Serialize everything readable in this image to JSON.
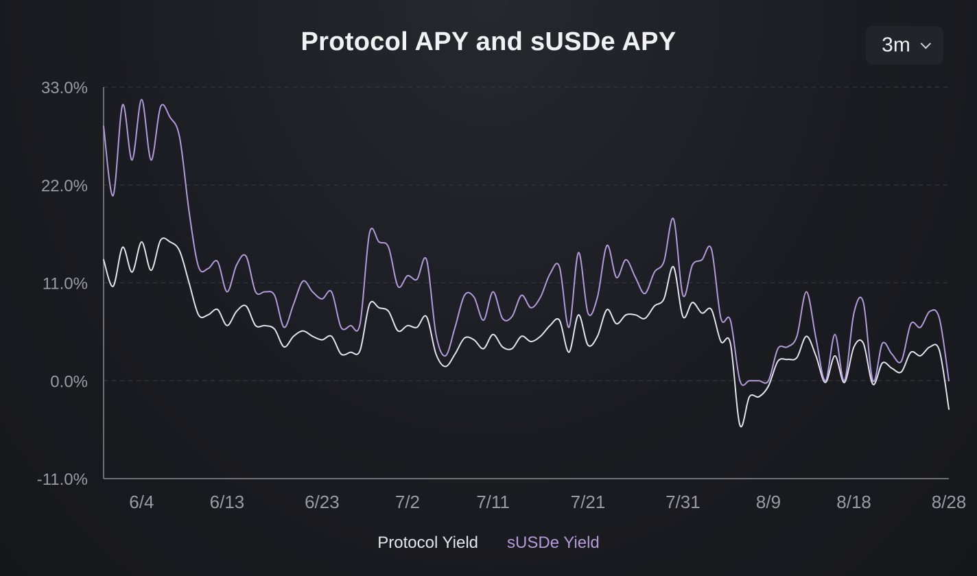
{
  "header": {
    "range_value": "3m",
    "range_icon": "chevron-down-icon"
  },
  "colors": {
    "protocol": "#e3e6f0",
    "susde": "#b49bdc",
    "axis": "#8a8c92",
    "grid": "#34363c",
    "text": "#9b9ca2"
  },
  "chart_data": {
    "type": "line",
    "title": "Protocol APY and sUSDe APY",
    "xlabel": "",
    "ylabel": "",
    "ylim": [
      -11,
      33
    ],
    "yticks": [
      33,
      22,
      11,
      0,
      -11
    ],
    "ytick_labels": [
      "33.0%",
      "22.0%",
      "11.0%",
      "0.0%",
      "-11.0%"
    ],
    "x_dates": [
      "2024-05-31",
      "2024-08-28"
    ],
    "xticks": [
      "2024-06-04",
      "2024-06-13",
      "2024-06-23",
      "2024-07-02",
      "2024-07-11",
      "2024-07-21",
      "2024-07-31",
      "2024-08-09",
      "2024-08-18",
      "2024-08-28"
    ],
    "xtick_labels": [
      "6/4",
      "6/13",
      "6/23",
      "7/2",
      "7/11",
      "7/21",
      "7/31",
      "8/9",
      "8/18",
      "8/28"
    ],
    "grid": "horizontal dashed",
    "legend_position": "bottom-center",
    "series": [
      {
        "name": "Protocol Yield",
        "color": "#e3e6f0",
        "points": [
          [
            "2024-05-31",
            13.6
          ],
          [
            "2024-06-01",
            10.6
          ],
          [
            "2024-06-02",
            15.0
          ],
          [
            "2024-06-03",
            12.2
          ],
          [
            "2024-06-04",
            15.6
          ],
          [
            "2024-06-05",
            12.4
          ],
          [
            "2024-06-06",
            15.8
          ],
          [
            "2024-06-07",
            15.6
          ],
          [
            "2024-06-08",
            14.6
          ],
          [
            "2024-06-09",
            11.0
          ],
          [
            "2024-06-10",
            7.4
          ],
          [
            "2024-06-11",
            7.4
          ],
          [
            "2024-06-12",
            8.0
          ],
          [
            "2024-06-13",
            6.2
          ],
          [
            "2024-06-14",
            7.8
          ],
          [
            "2024-06-15",
            8.4
          ],
          [
            "2024-06-16",
            6.2
          ],
          [
            "2024-06-17",
            6.2
          ],
          [
            "2024-06-18",
            5.8
          ],
          [
            "2024-06-19",
            3.8
          ],
          [
            "2024-06-20",
            5.0
          ],
          [
            "2024-06-21",
            5.6
          ],
          [
            "2024-06-22",
            5.0
          ],
          [
            "2024-06-23",
            4.6
          ],
          [
            "2024-06-24",
            5.0
          ],
          [
            "2024-06-25",
            3.0
          ],
          [
            "2024-06-26",
            3.2
          ],
          [
            "2024-06-27",
            3.4
          ],
          [
            "2024-06-28",
            8.6
          ],
          [
            "2024-06-29",
            8.2
          ],
          [
            "2024-06-30",
            7.8
          ],
          [
            "2024-07-01",
            5.6
          ],
          [
            "2024-07-02",
            6.2
          ],
          [
            "2024-07-03",
            6.0
          ],
          [
            "2024-07-04",
            7.2
          ],
          [
            "2024-07-05",
            3.0
          ],
          [
            "2024-07-06",
            1.6
          ],
          [
            "2024-07-07",
            3.0
          ],
          [
            "2024-07-08",
            4.8
          ],
          [
            "2024-07-09",
            4.6
          ],
          [
            "2024-07-10",
            3.6
          ],
          [
            "2024-07-11",
            5.2
          ],
          [
            "2024-07-12",
            3.8
          ],
          [
            "2024-07-13",
            3.6
          ],
          [
            "2024-07-14",
            5.0
          ],
          [
            "2024-07-15",
            4.4
          ],
          [
            "2024-07-16",
            5.0
          ],
          [
            "2024-07-17",
            6.2
          ],
          [
            "2024-07-18",
            6.8
          ],
          [
            "2024-07-19",
            3.2
          ],
          [
            "2024-07-20",
            7.4
          ],
          [
            "2024-07-21",
            4.0
          ],
          [
            "2024-07-22",
            5.0
          ],
          [
            "2024-07-23",
            8.0
          ],
          [
            "2024-07-24",
            6.4
          ],
          [
            "2024-07-25",
            7.4
          ],
          [
            "2024-07-26",
            7.4
          ],
          [
            "2024-07-27",
            7.0
          ],
          [
            "2024-07-28",
            8.4
          ],
          [
            "2024-07-29",
            9.2
          ],
          [
            "2024-07-30",
            12.8
          ],
          [
            "2024-07-31",
            7.2
          ],
          [
            "2024-08-01",
            8.8
          ],
          [
            "2024-08-02",
            7.6
          ],
          [
            "2024-08-03",
            8.0
          ],
          [
            "2024-08-04",
            4.4
          ],
          [
            "2024-08-05",
            4.2
          ],
          [
            "2024-08-06",
            -5.0
          ],
          [
            "2024-08-07",
            -1.8
          ],
          [
            "2024-08-08",
            -1.8
          ],
          [
            "2024-08-09",
            -0.6
          ],
          [
            "2024-08-10",
            2.2
          ],
          [
            "2024-08-11",
            2.4
          ],
          [
            "2024-08-12",
            2.6
          ],
          [
            "2024-08-13",
            5.0
          ],
          [
            "2024-08-14",
            2.8
          ],
          [
            "2024-08-15",
            -0.2
          ],
          [
            "2024-08-16",
            2.8
          ],
          [
            "2024-08-17",
            -0.2
          ],
          [
            "2024-08-18",
            3.8
          ],
          [
            "2024-08-19",
            4.2
          ],
          [
            "2024-08-20",
            -0.4
          ],
          [
            "2024-08-21",
            2.0
          ],
          [
            "2024-08-22",
            1.4
          ],
          [
            "2024-08-23",
            1.0
          ],
          [
            "2024-08-24",
            3.2
          ],
          [
            "2024-08-25",
            2.8
          ],
          [
            "2024-08-26",
            3.8
          ],
          [
            "2024-08-27",
            3.4
          ],
          [
            "2024-08-28",
            -3.2
          ]
        ]
      },
      {
        "name": "sUSDe Yield",
        "color": "#b49bdc",
        "points": [
          [
            "2024-05-31",
            28.6
          ],
          [
            "2024-06-01",
            20.8
          ],
          [
            "2024-06-02",
            31.0
          ],
          [
            "2024-06-03",
            24.8
          ],
          [
            "2024-06-04",
            31.6
          ],
          [
            "2024-06-05",
            24.8
          ],
          [
            "2024-06-06",
            30.8
          ],
          [
            "2024-06-07",
            29.6
          ],
          [
            "2024-06-08",
            27.4
          ],
          [
            "2024-06-09",
            19.0
          ],
          [
            "2024-06-10",
            12.8
          ],
          [
            "2024-06-11",
            12.6
          ],
          [
            "2024-06-12",
            13.4
          ],
          [
            "2024-06-13",
            10.0
          ],
          [
            "2024-06-14",
            13.0
          ],
          [
            "2024-06-15",
            14.0
          ],
          [
            "2024-06-16",
            10.0
          ],
          [
            "2024-06-17",
            10.0
          ],
          [
            "2024-06-18",
            9.6
          ],
          [
            "2024-06-19",
            6.0
          ],
          [
            "2024-06-20",
            8.6
          ],
          [
            "2024-06-21",
            11.2
          ],
          [
            "2024-06-22",
            10.0
          ],
          [
            "2024-06-23",
            9.2
          ],
          [
            "2024-06-24",
            10.0
          ],
          [
            "2024-06-25",
            6.0
          ],
          [
            "2024-06-26",
            6.2
          ],
          [
            "2024-06-27",
            6.4
          ],
          [
            "2024-06-28",
            16.6
          ],
          [
            "2024-06-29",
            15.6
          ],
          [
            "2024-06-30",
            15.0
          ],
          [
            "2024-07-01",
            10.6
          ],
          [
            "2024-07-02",
            11.8
          ],
          [
            "2024-07-03",
            11.4
          ],
          [
            "2024-07-04",
            13.6
          ],
          [
            "2024-07-05",
            5.2
          ],
          [
            "2024-07-06",
            2.8
          ],
          [
            "2024-07-07",
            6.0
          ],
          [
            "2024-07-08",
            9.6
          ],
          [
            "2024-07-09",
            9.4
          ],
          [
            "2024-07-10",
            6.8
          ],
          [
            "2024-07-11",
            10.0
          ],
          [
            "2024-07-12",
            7.0
          ],
          [
            "2024-07-13",
            7.2
          ],
          [
            "2024-07-14",
            9.6
          ],
          [
            "2024-07-15",
            8.2
          ],
          [
            "2024-07-16",
            9.4
          ],
          [
            "2024-07-17",
            12.0
          ],
          [
            "2024-07-18",
            12.8
          ],
          [
            "2024-07-19",
            6.0
          ],
          [
            "2024-07-20",
            14.4
          ],
          [
            "2024-07-21",
            7.6
          ],
          [
            "2024-07-22",
            9.4
          ],
          [
            "2024-07-23",
            15.2
          ],
          [
            "2024-07-24",
            11.6
          ],
          [
            "2024-07-25",
            13.6
          ],
          [
            "2024-07-26",
            11.6
          ],
          [
            "2024-07-27",
            9.8
          ],
          [
            "2024-07-28",
            12.2
          ],
          [
            "2024-07-29",
            13.4
          ],
          [
            "2024-07-30",
            18.2
          ],
          [
            "2024-07-31",
            9.6
          ],
          [
            "2024-08-01",
            13.0
          ],
          [
            "2024-08-02",
            13.6
          ],
          [
            "2024-08-03",
            14.8
          ],
          [
            "2024-08-04",
            7.0
          ],
          [
            "2024-08-05",
            6.8
          ],
          [
            "2024-08-06",
            0.0
          ],
          [
            "2024-08-07",
            0.0
          ],
          [
            "2024-08-08",
            0.0
          ],
          [
            "2024-08-09",
            0.0
          ],
          [
            "2024-08-10",
            3.6
          ],
          [
            "2024-08-11",
            3.8
          ],
          [
            "2024-08-12",
            5.0
          ],
          [
            "2024-08-13",
            10.0
          ],
          [
            "2024-08-14",
            4.8
          ],
          [
            "2024-08-15",
            0.0
          ],
          [
            "2024-08-16",
            5.2
          ],
          [
            "2024-08-17",
            0.0
          ],
          [
            "2024-08-18",
            7.6
          ],
          [
            "2024-08-19",
            8.8
          ],
          [
            "2024-08-20",
            0.0
          ],
          [
            "2024-08-21",
            4.2
          ],
          [
            "2024-08-22",
            3.0
          ],
          [
            "2024-08-23",
            2.2
          ],
          [
            "2024-08-24",
            6.4
          ],
          [
            "2024-08-25",
            6.0
          ],
          [
            "2024-08-26",
            7.8
          ],
          [
            "2024-08-27",
            7.0
          ],
          [
            "2024-08-28",
            0.0
          ]
        ]
      }
    ]
  }
}
